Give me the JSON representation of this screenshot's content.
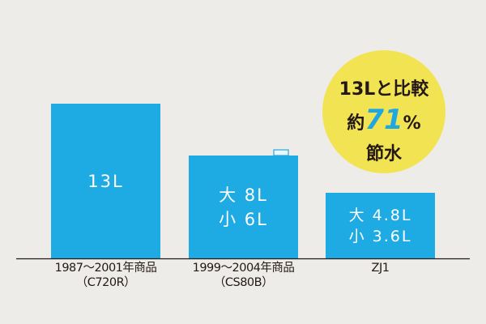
{
  "chart_data": {
    "type": "bar",
    "title": "",
    "xlabel": "",
    "ylabel": "",
    "ylim": [
      0,
      13.5
    ],
    "categories": [
      "1987〜2001年商品（C720R）",
      "1999〜2004年商品（CS80B）",
      "ZJ1"
    ],
    "category_lines": [
      [
        "1987〜2001年商品",
        "（C720R）"
      ],
      [
        "1999〜2004年商品",
        "（CS80B）"
      ],
      [
        "ZJ1"
      ]
    ],
    "values": [
      13,
      8,
      4.8
    ],
    "bar_labels": [
      [
        "13L"
      ],
      [
        "大 8L",
        "小 6L"
      ],
      [
        "大 4.8L",
        "小 3.6L"
      ]
    ],
    "colors": {
      "bar": "#1eaae2",
      "axis": "#231815",
      "circle": "#f2e352",
      "highlight": "#1ea7e1"
    },
    "annotation": {
      "line1": "13Lと比較",
      "prefix": "約",
      "percent": "71",
      "suffix": "%",
      "line3": "節水"
    }
  }
}
